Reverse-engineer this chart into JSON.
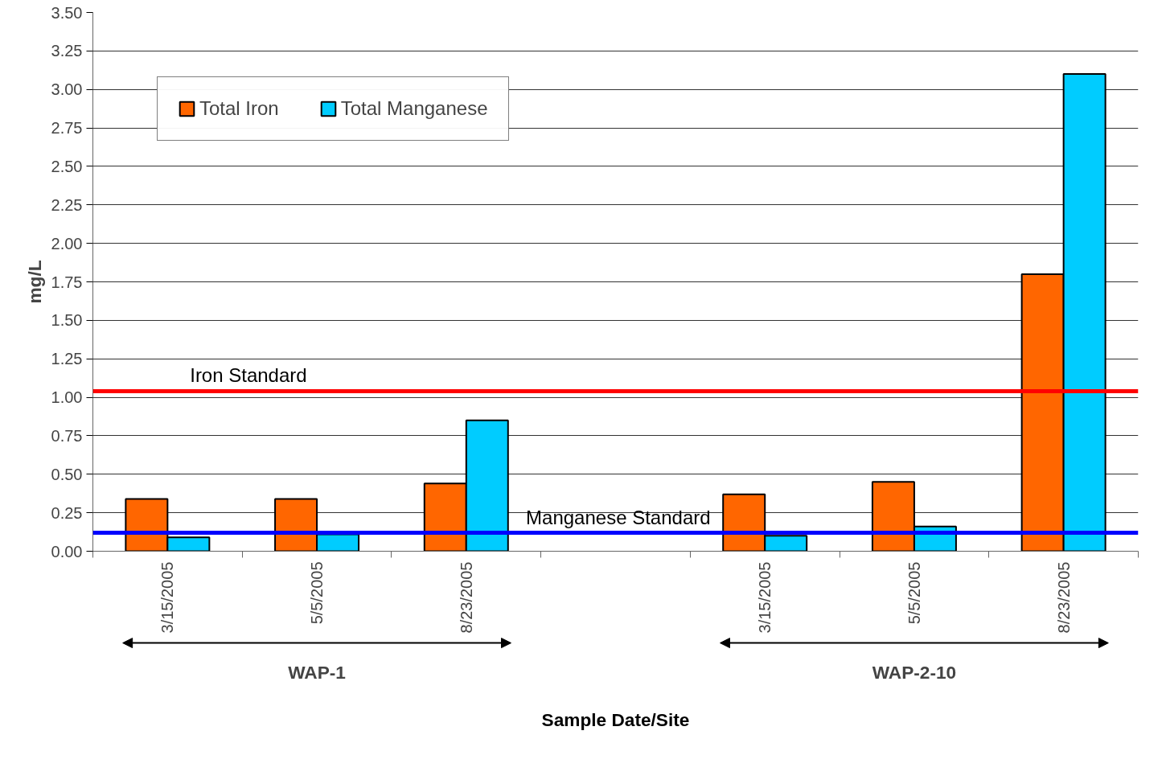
{
  "chart_data": {
    "type": "bar",
    "xlabel": "Sample Date/Site",
    "ylabel": "mg/L",
    "categories": [
      "3/15/2005",
      "5/5/2005",
      "8/23/2005",
      null,
      "3/15/2005",
      "5/5/2005",
      "8/23/2005"
    ],
    "series": [
      {
        "name": "Total Iron",
        "color": "#ff6600",
        "values": [
          0.34,
          0.34,
          0.44,
          null,
          0.37,
          0.45,
          1.8
        ]
      },
      {
        "name": "Total Manganese",
        "color": "#00ccff",
        "values": [
          0.09,
          0.11,
          0.85,
          null,
          0.1,
          0.16,
          3.1
        ]
      }
    ],
    "ylim": [
      0,
      3.5
    ],
    "yticks": [
      {
        "value": 0,
        "label": "0.00"
      },
      {
        "value": 0.25,
        "label": "0.25"
      },
      {
        "value": 0.5,
        "label": "0.50"
      },
      {
        "value": 0.75,
        "label": "0.75"
      },
      {
        "value": 1,
        "label": "1.00"
      },
      {
        "value": 1.25,
        "label": "1.25"
      },
      {
        "value": 1.5,
        "label": "1.50"
      },
      {
        "value": 1.75,
        "label": "1.75"
      },
      {
        "value": 2,
        "label": "2.00"
      },
      {
        "value": 2.25,
        "label": "2.25"
      },
      {
        "value": 2.5,
        "label": "2.50"
      },
      {
        "value": 2.75,
        "label": "2.75"
      },
      {
        "value": 3,
        "label": "3.00"
      },
      {
        "value": 3.25,
        "label": "3.25"
      },
      {
        "value": 3.5,
        "label": "3.50"
      }
    ],
    "ref_lines": [
      {
        "axis": "y",
        "value": 1.04,
        "label": "Iron Standard",
        "color": "#ff0000"
      },
      {
        "axis": "y",
        "value": 0.12,
        "label": "Manganese Standard",
        "color": "#0000ff"
      }
    ],
    "annotations": [
      "WAP-1",
      "WAP-2-10"
    ],
    "grid": "y",
    "legend": "top left"
  }
}
